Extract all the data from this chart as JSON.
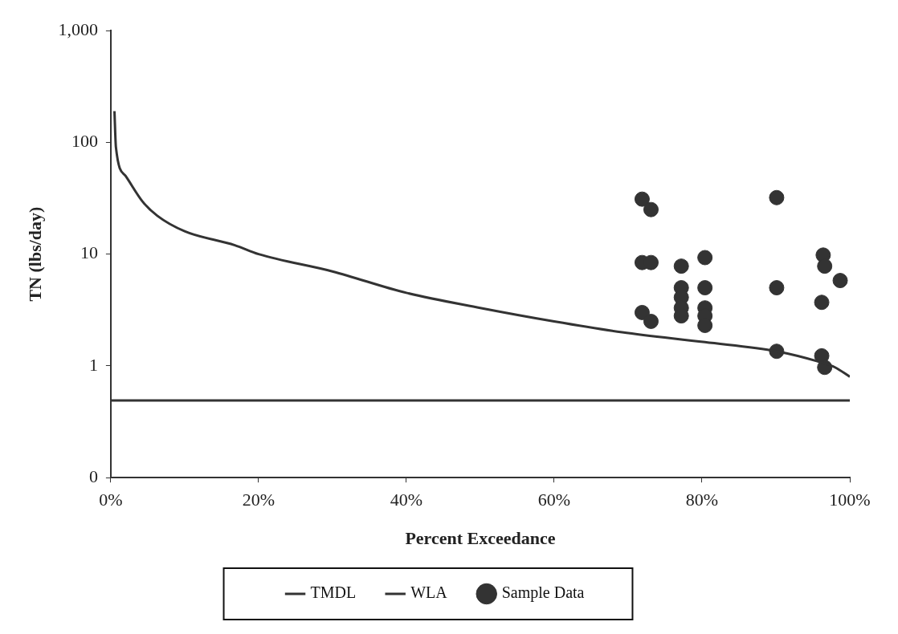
{
  "chart_data": {
    "type": "line",
    "xlabel": "Percent Exceedance",
    "ylabel": "TN (lbs/day)",
    "log": "y",
    "grid": false,
    "legend": "bottom",
    "xlim": [
      0,
      100
    ],
    "xticks": [
      {
        "value": 0,
        "label": "0%"
      },
      {
        "value": 20,
        "label": "20%"
      },
      {
        "value": 40,
        "label": "40%"
      },
      {
        "value": 60,
        "label": "60%"
      },
      {
        "value": 80,
        "label": "80%"
      },
      {
        "value": 100,
        "label": "100%"
      }
    ],
    "ylim": [
      0.1,
      1000
    ],
    "yticks": [
      {
        "value": 0.1,
        "label": "0"
      },
      {
        "value": 1,
        "label": "1"
      },
      {
        "value": 10,
        "label": "10"
      },
      {
        "value": 100,
        "label": "100"
      },
      {
        "value": 1000,
        "label": "1,000"
      }
    ],
    "series": [
      {
        "name": "TMDL",
        "type": "line",
        "color": "#333333",
        "marker": "none",
        "line_style": "solid",
        "x": [
          0.5,
          0.7,
          2,
          4.3,
          6.3,
          10,
          16.8,
          20,
          30,
          40,
          50,
          60,
          69.2,
          80.4,
          90.1,
          96.6,
          98,
          100
        ],
        "values": [
          190,
          90,
          50,
          29.5,
          22,
          16,
          12,
          10,
          7,
          4.5,
          3.3,
          2.5,
          2.0,
          1.63,
          1.35,
          1.05,
          0.97,
          0.8
        ]
      },
      {
        "name": "WLA",
        "type": "line",
        "color": "#333333",
        "marker": "none",
        "line_style": "solid",
        "x": [
          0,
          100
        ],
        "values": [
          0.49,
          0.49
        ]
      },
      {
        "name": "Sample Data",
        "type": "scatter",
        "color": "#333333",
        "marker": "circle",
        "x": [
          71.9,
          73.1,
          71.9,
          73.1,
          71.9,
          73.1,
          77.2,
          77.2,
          77.2,
          77.2,
          77.2,
          80.4,
          80.4,
          80.4,
          80.4,
          80.4,
          90.1,
          90.1,
          90.1,
          96.4,
          96.6,
          98.7,
          96.2,
          96.2,
          96.6
        ],
        "values": [
          31,
          25,
          8.4,
          8.4,
          3.0,
          2.5,
          7.8,
          5.0,
          4.1,
          3.3,
          2.8,
          9.3,
          5.0,
          3.3,
          2.8,
          2.3,
          32,
          5.0,
          1.35,
          9.8,
          7.8,
          5.8,
          3.7,
          1.23,
          0.97
        ]
      }
    ]
  }
}
